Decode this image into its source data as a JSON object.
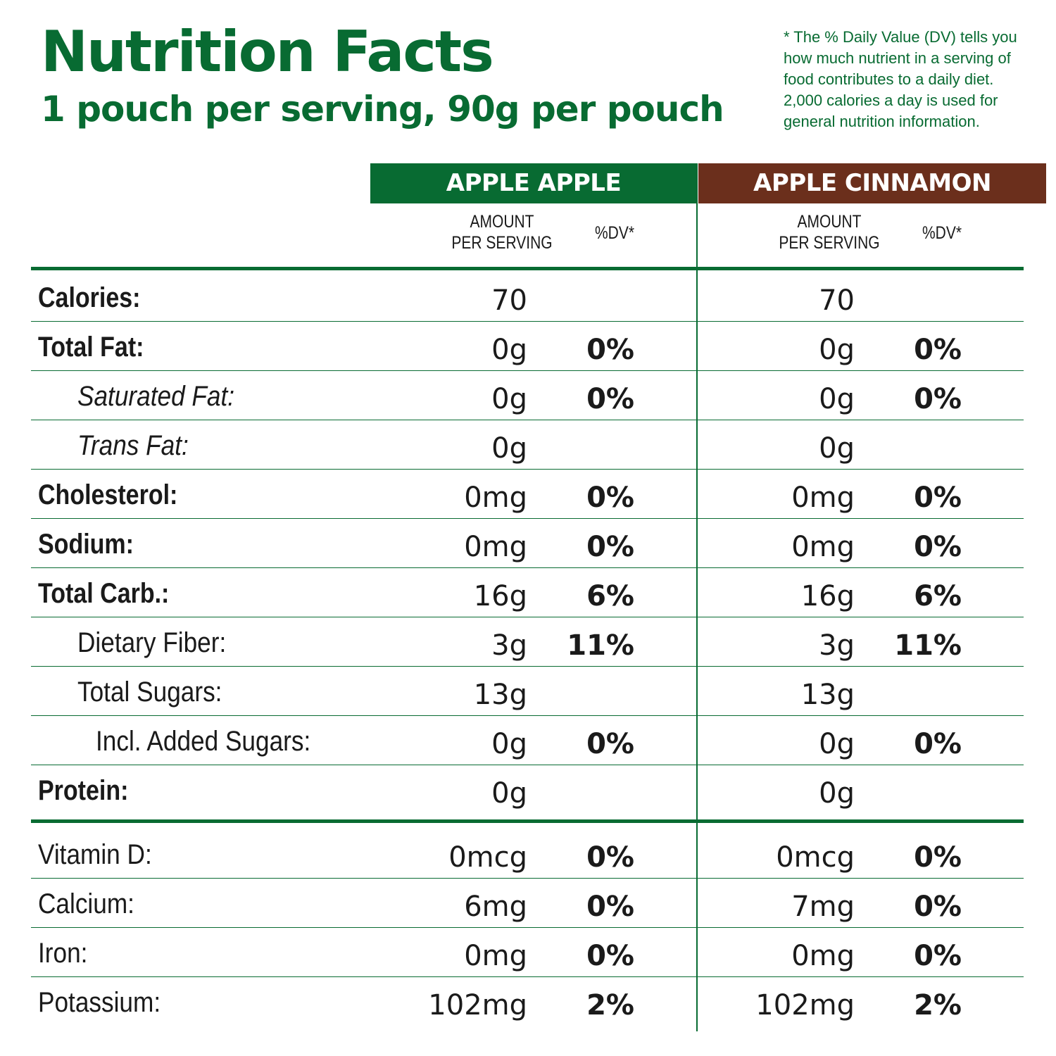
{
  "colors": {
    "green": "#086b32",
    "brown": "#6b2f1c",
    "text": "#1a1a1a"
  },
  "header": {
    "title": "Nutrition Facts",
    "subtitle": "1 pouch per serving, 90g per pouch",
    "footnote": "* The % Daily Value (DV) tells you\nhow much nutrient in a serving of\nfood contributes to a daily diet.\n2,000 calories a day is used for\ngeneral nutrition information."
  },
  "flavors": [
    {
      "name": "APPLE APPLE",
      "amount_label": "AMOUNT\nPER SERVING",
      "dv_label": "%DV*"
    },
    {
      "name": "APPLE CINNAMON",
      "amount_label": "AMOUNT\nPER SERVING",
      "dv_label": "%DV*"
    }
  ],
  "rows": [
    {
      "label": "Calories:",
      "style": "bold",
      "indent": 0,
      "a_amt": "70",
      "a_dv": "",
      "b_amt": "70",
      "b_dv": ""
    },
    {
      "label": "Total Fat:",
      "style": "bold",
      "indent": 0,
      "a_amt": "0g",
      "a_dv": "0%",
      "b_amt": "0g",
      "b_dv": "0%"
    },
    {
      "label": "Saturated Fat:",
      "style": "italic",
      "indent": 1,
      "a_amt": "0g",
      "a_dv": "0%",
      "b_amt": "0g",
      "b_dv": "0%"
    },
    {
      "label": "Trans Fat:",
      "style": "italic",
      "indent": 1,
      "a_amt": "0g",
      "a_dv": "",
      "b_amt": "0g",
      "b_dv": ""
    },
    {
      "label": "Cholesterol:",
      "style": "bold",
      "indent": 0,
      "a_amt": "0mg",
      "a_dv": "0%",
      "b_amt": "0mg",
      "b_dv": "0%"
    },
    {
      "label": "Sodium:",
      "style": "bold",
      "indent": 0,
      "a_amt": "0mg",
      "a_dv": "0%",
      "b_amt": "0mg",
      "b_dv": "0%"
    },
    {
      "label": "Total Carb.:",
      "style": "bold",
      "indent": 0,
      "a_amt": "16g",
      "a_dv": "6%",
      "b_amt": "16g",
      "b_dv": "6%"
    },
    {
      "label": "Dietary Fiber:",
      "style": "normal",
      "indent": 1,
      "a_amt": "3g",
      "a_dv": "11%",
      "b_amt": "3g",
      "b_dv": "11%"
    },
    {
      "label": "Total Sugars:",
      "style": "normal",
      "indent": 1,
      "a_amt": "13g",
      "a_dv": "",
      "b_amt": "13g",
      "b_dv": ""
    },
    {
      "label": "Incl. Added Sugars:",
      "style": "normal",
      "indent": 2,
      "a_amt": "0g",
      "a_dv": "0%",
      "b_amt": "0g",
      "b_dv": "0%"
    },
    {
      "label": "Protein:",
      "style": "bold",
      "indent": 0,
      "a_amt": "0g",
      "a_dv": "",
      "b_amt": "0g",
      "b_dv": ""
    },
    {
      "label": "Vitamin D:",
      "style": "normal",
      "indent": 0,
      "a_amt": "0mcg",
      "a_dv": "0%",
      "b_amt": "0mcg",
      "b_dv": "0%"
    },
    {
      "label": "Calcium:",
      "style": "normal",
      "indent": 0,
      "a_amt": "6mg",
      "a_dv": "0%",
      "b_amt": "7mg",
      "b_dv": "0%"
    },
    {
      "label": "Iron:",
      "style": "normal",
      "indent": 0,
      "a_amt": "0mg",
      "a_dv": "0%",
      "b_amt": "0mg",
      "b_dv": "0%"
    },
    {
      "label": "Potassium:",
      "style": "normal",
      "indent": 0,
      "a_amt": "102mg",
      "a_dv": "2%",
      "b_amt": "102mg",
      "b_dv": "2%"
    }
  ]
}
